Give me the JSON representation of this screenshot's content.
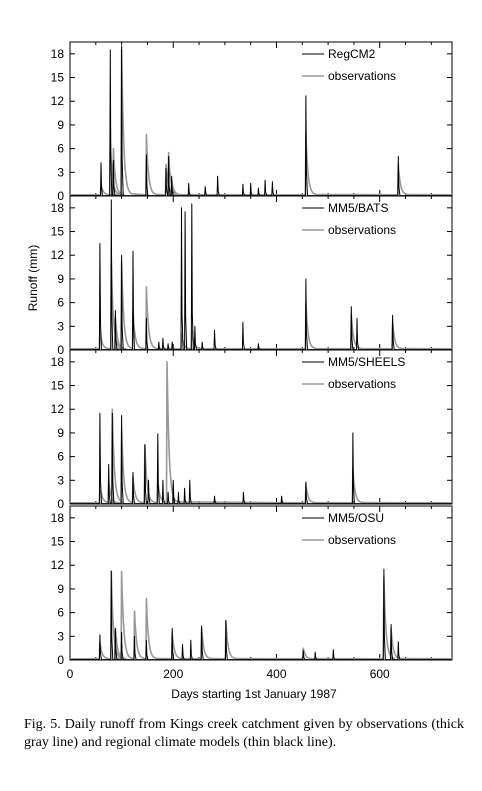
{
  "caption": "Fig. 5. Daily runoff from Kings creek catchment given by observations (thick gray line) and regional climate models (thin black line).",
  "chart_data": {
    "type": "line",
    "xlabel": "Days starting 1st January 1987",
    "ylabel": "Runoff (mm)",
    "xlim": [
      0,
      740
    ],
    "ylim": [
      0,
      19.5
    ],
    "xticks": [
      0,
      200,
      400,
      600
    ],
    "yticks": [
      0,
      3,
      6,
      9,
      12,
      15,
      18
    ],
    "colors": {
      "model": "#000000",
      "observations": "#999999"
    },
    "panels": [
      {
        "legend": [
          "RegCM2",
          "observations"
        ],
        "model_peaks": [
          [
            60,
            4.2
          ],
          [
            78,
            18.5
          ],
          [
            84,
            4.5
          ],
          [
            100,
            19.0
          ],
          [
            148,
            5.2
          ],
          [
            186,
            3.5
          ],
          [
            191,
            5.0
          ],
          [
            197,
            2.5
          ],
          [
            230,
            1.6
          ],
          [
            262,
            1.2
          ],
          [
            286,
            2.5
          ],
          [
            335,
            1.5
          ],
          [
            350,
            1.6
          ],
          [
            365,
            1.0
          ],
          [
            378,
            2.0
          ],
          [
            392,
            1.8
          ],
          [
            457,
            12.7
          ],
          [
            636,
            5.0
          ]
        ],
        "obs_peaks": [
          [
            60,
            1.5
          ],
          [
            78,
            7.0
          ],
          [
            84,
            6.0
          ],
          [
            100,
            18.5
          ],
          [
            148,
            7.8
          ],
          [
            186,
            4.0
          ],
          [
            191,
            5.5
          ],
          [
            197,
            2.0
          ],
          [
            457,
            8.0
          ],
          [
            636,
            4.0
          ]
        ]
      },
      {
        "legend": [
          "MM5/BATS",
          "observations"
        ],
        "model_peaks": [
          [
            58,
            13.5
          ],
          [
            80,
            19.0
          ],
          [
            88,
            5.0
          ],
          [
            100,
            12.0
          ],
          [
            122,
            12.5
          ],
          [
            148,
            4.0
          ],
          [
            172,
            1.0
          ],
          [
            180,
            1.5
          ],
          [
            190,
            0.8
          ],
          [
            198,
            1.0
          ],
          [
            216,
            18.0
          ],
          [
            223,
            17.5
          ],
          [
            236,
            18.5
          ],
          [
            242,
            3.0
          ],
          [
            256,
            1.0
          ],
          [
            280,
            2.5
          ],
          [
            335,
            3.5
          ],
          [
            365,
            0.8
          ],
          [
            457,
            9.0
          ],
          [
            545,
            5.5
          ],
          [
            556,
            4.0
          ],
          [
            625,
            4.4
          ]
        ],
        "obs_peaks": [
          [
            58,
            2.5
          ],
          [
            80,
            11.5
          ],
          [
            88,
            4.0
          ],
          [
            100,
            11.2
          ],
          [
            122,
            5.0
          ],
          [
            148,
            8.0
          ],
          [
            216,
            2.0
          ],
          [
            236,
            2.5
          ],
          [
            457,
            6.0
          ],
          [
            545,
            4.5
          ],
          [
            625,
            3.5
          ]
        ]
      },
      {
        "legend": [
          "MM5/SHEELS",
          "observations"
        ],
        "model_peaks": [
          [
            58,
            11.5
          ],
          [
            75,
            5.0
          ],
          [
            82,
            11.5
          ],
          [
            100,
            11.2
          ],
          [
            122,
            4.0
          ],
          [
            145,
            7.5
          ],
          [
            152,
            3.0
          ],
          [
            170,
            8.9
          ],
          [
            180,
            3.0
          ],
          [
            190,
            1.5
          ],
          [
            200,
            3.0
          ],
          [
            210,
            1.5
          ],
          [
            222,
            2.0
          ],
          [
            232,
            3.0
          ],
          [
            280,
            1.0
          ],
          [
            336,
            1.5
          ],
          [
            410,
            1.0
          ],
          [
            457,
            2.8
          ],
          [
            548,
            9.0
          ]
        ],
        "obs_peaks": [
          [
            58,
            2.5
          ],
          [
            75,
            3.0
          ],
          [
            82,
            12.0
          ],
          [
            100,
            9.5
          ],
          [
            122,
            3.5
          ],
          [
            145,
            7.5
          ],
          [
            170,
            3.0
          ],
          [
            188,
            18.0
          ],
          [
            457,
            2.5
          ],
          [
            548,
            4.5
          ]
        ]
      },
      {
        "legend": [
          "MM5/OSU",
          "observations"
        ],
        "model_peaks": [
          [
            58,
            3.2
          ],
          [
            80,
            11.2
          ],
          [
            88,
            4.0
          ],
          [
            100,
            3.5
          ],
          [
            125,
            3.0
          ],
          [
            148,
            2.5
          ],
          [
            198,
            4.0
          ],
          [
            218,
            2.0
          ],
          [
            234,
            2.5
          ],
          [
            255,
            4.3
          ],
          [
            302,
            5.0
          ],
          [
            452,
            1.2
          ],
          [
            475,
            1.0
          ],
          [
            510,
            1.3
          ],
          [
            608,
            11.5
          ],
          [
            622,
            4.5
          ],
          [
            636,
            2.3
          ]
        ],
        "obs_peaks": [
          [
            58,
            2.2
          ],
          [
            80,
            11.3
          ],
          [
            88,
            4.0
          ],
          [
            100,
            11.2
          ],
          [
            125,
            6.2
          ],
          [
            148,
            7.8
          ],
          [
            198,
            3.5
          ],
          [
            255,
            4.0
          ],
          [
            302,
            5.0
          ],
          [
            452,
            1.5
          ],
          [
            608,
            10.5
          ],
          [
            622,
            4.0
          ]
        ]
      }
    ]
  }
}
